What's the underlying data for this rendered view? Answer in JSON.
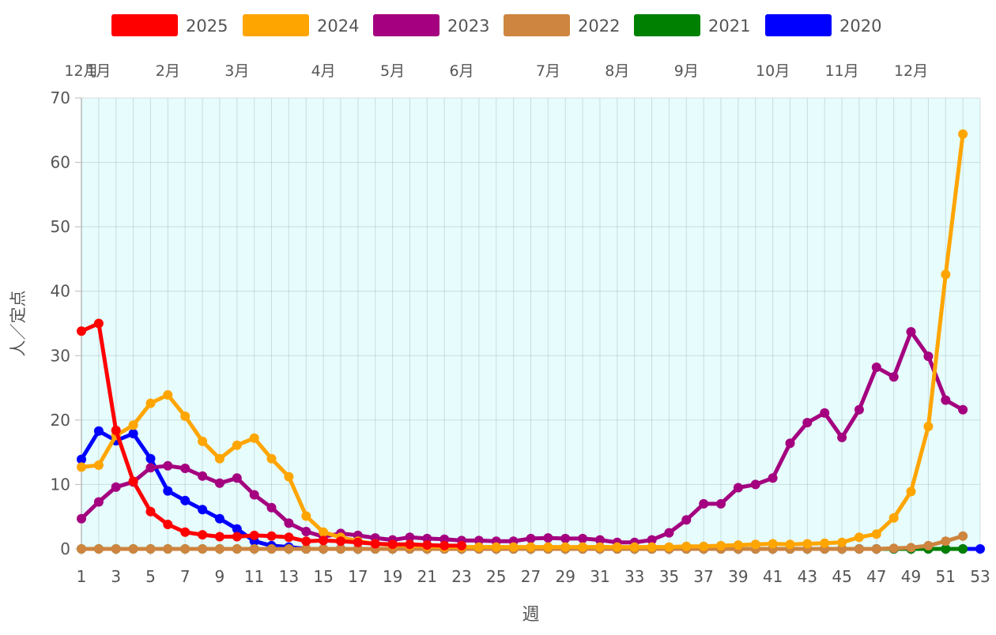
{
  "chart_data": {
    "type": "line",
    "xlabel": "週",
    "ylabel": "人／定点",
    "xlim": [
      1,
      53
    ],
    "ylim": [
      0,
      70
    ],
    "y_ticks": [
      0,
      10,
      20,
      30,
      40,
      50,
      60,
      70
    ],
    "x_tick_step": 2,
    "grid": true,
    "plot_background": "#e6fcfd",
    "legend_position": "top",
    "month_labels": [
      {
        "label": "12月",
        "week": 1
      },
      {
        "label": "1月",
        "week": 2
      },
      {
        "label": "2月",
        "week": 6
      },
      {
        "label": "3月",
        "week": 10
      },
      {
        "label": "4月",
        "week": 15
      },
      {
        "label": "5月",
        "week": 19
      },
      {
        "label": "6月",
        "week": 23
      },
      {
        "label": "7月",
        "week": 28
      },
      {
        "label": "8月",
        "week": 32
      },
      {
        "label": "9月",
        "week": 36
      },
      {
        "label": "10月",
        "week": 41
      },
      {
        "label": "11月",
        "week": 45
      },
      {
        "label": "12月",
        "week": 49
      }
    ],
    "series": [
      {
        "name": "2025",
        "color": "#ff0000",
        "values": [
          33.8,
          35.0,
          18.4,
          10.5,
          5.8,
          3.8,
          2.6,
          2.2,
          1.9,
          1.9,
          2.1,
          2.0,
          1.8,
          1.2,
          1.3,
          1.2,
          1.0,
          0.8,
          0.7,
          0.7,
          0.6,
          0.5,
          0.5
        ]
      },
      {
        "name": "2024",
        "color": "#ffa500",
        "values": [
          12.7,
          13.0,
          17.6,
          19.2,
          22.6,
          23.9,
          20.6,
          16.7,
          14.0,
          16.1,
          17.2,
          14.0,
          11.2,
          5.1,
          2.6,
          1.8,
          1.2,
          0.8,
          0.6,
          0.5,
          0.4,
          0.3,
          0.3,
          0.3,
          0.3,
          0.3,
          0.3,
          0.3,
          0.3,
          0.3,
          0.3,
          0.3,
          0.3,
          0.3,
          0.3,
          0.4,
          0.4,
          0.5,
          0.6,
          0.7,
          0.8,
          0.7,
          0.8,
          0.9,
          1.0,
          1.8,
          2.3,
          4.8,
          8.9,
          19.0,
          42.6,
          64.4
        ]
      },
      {
        "name": "2023",
        "color": "#a4007f",
        "values": [
          4.7,
          7.3,
          9.6,
          10.4,
          12.6,
          12.9,
          12.5,
          11.3,
          10.2,
          11.0,
          8.4,
          6.4,
          4.0,
          2.7,
          1.9,
          2.4,
          2.1,
          1.7,
          1.4,
          1.8,
          1.6,
          1.5,
          1.3,
          1.3,
          1.2,
          1.2,
          1.6,
          1.7,
          1.6,
          1.6,
          1.4,
          1.0,
          1.0,
          1.4,
          2.5,
          4.5,
          7.0,
          7.0,
          9.5,
          10.0,
          11.0,
          16.4,
          19.6,
          21.1,
          17.3,
          21.6,
          28.2,
          26.7,
          33.7,
          29.9,
          23.1,
          21.6
        ]
      },
      {
        "name": "2022",
        "color": "#cd853f",
        "values": [
          0,
          0,
          0,
          0,
          0,
          0,
          0,
          0,
          0,
          0,
          0,
          0,
          0,
          0,
          0,
          0,
          0,
          0,
          0,
          0,
          0,
          0,
          0,
          0,
          0,
          0,
          0,
          0,
          0,
          0,
          0,
          0,
          0,
          0,
          0,
          0,
          0,
          0,
          0,
          0,
          0,
          0,
          0,
          0,
          0,
          0,
          0,
          0.1,
          0.2,
          0.5,
          1.2,
          2.0
        ]
      },
      {
        "name": "2021",
        "color": "#008000",
        "values": [
          0,
          0,
          0,
          0,
          0,
          0,
          0,
          0,
          0,
          0,
          0,
          0,
          0,
          0,
          0,
          0,
          0,
          0,
          0,
          0,
          0,
          0,
          0,
          0,
          0,
          0,
          0,
          0,
          0,
          0,
          0,
          0,
          0,
          0,
          0,
          0,
          0,
          0,
          0,
          0,
          0,
          0,
          0,
          0,
          0,
          0,
          0,
          0,
          0,
          0,
          0,
          0
        ]
      },
      {
        "name": "2020",
        "color": "#0000ff",
        "values": [
          13.9,
          18.3,
          16.8,
          17.9,
          14.0,
          9.0,
          7.5,
          6.1,
          4.7,
          3.1,
          1.2,
          0.5,
          0.3,
          0,
          0,
          0,
          0,
          0,
          0,
          0,
          0,
          0,
          0,
          0,
          0,
          0,
          0,
          0,
          0,
          0,
          0,
          0,
          0,
          0,
          0,
          0,
          0,
          0,
          0,
          0,
          0,
          0,
          0,
          0,
          0,
          0,
          0,
          0,
          0,
          0,
          0,
          0,
          0
        ]
      }
    ]
  }
}
